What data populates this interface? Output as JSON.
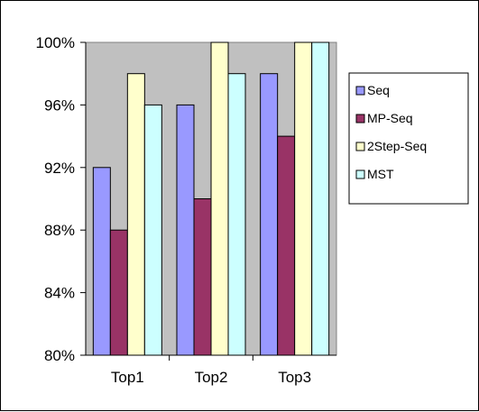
{
  "chart_data": {
    "type": "bar",
    "title": "",
    "xlabel": "",
    "ylabel": "",
    "categories": [
      "Top1",
      "Top2",
      "Top3"
    ],
    "series": [
      {
        "name": "Seq",
        "values": [
          92,
          96,
          98
        ],
        "color": "#9999ff"
      },
      {
        "name": "MP-Seq",
        "values": [
          88,
          90,
          94
        ],
        "color": "#993366"
      },
      {
        "name": "2Step-Seq",
        "values": [
          98,
          100,
          100
        ],
        "color": "#ffffcc"
      },
      {
        "name": "MST",
        "values": [
          96,
          98,
          100
        ],
        "color": "#ccffff"
      }
    ],
    "ylim": [
      80,
      100
    ],
    "yticks": [
      80,
      84,
      88,
      92,
      96,
      100
    ],
    "ytick_labels": [
      "80%",
      "84%",
      "88%",
      "92%",
      "96%",
      "100%"
    ],
    "unit": "%",
    "plot_background": "#c0c0c0",
    "grid": false,
    "legend_position": "right"
  }
}
